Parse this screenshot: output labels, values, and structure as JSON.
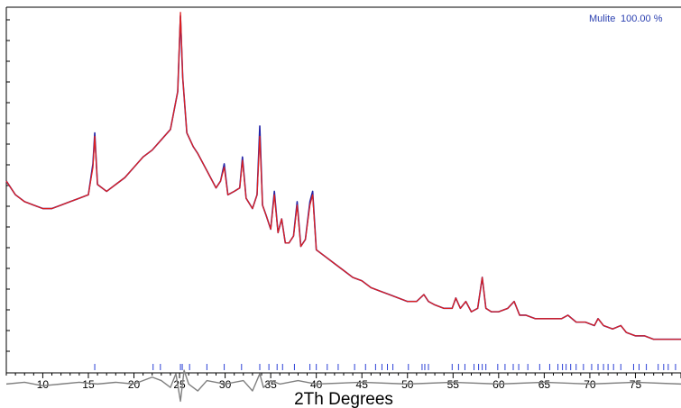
{
  "chart_data": {
    "type": "line",
    "title": "",
    "xlabel": "2Th Degrees",
    "ylabel": "",
    "xlim": [
      6,
      80
    ],
    "ylim": [
      0,
      100
    ],
    "grid": false,
    "legend_position": "top-right",
    "legend": {
      "phase": "Mulite",
      "percent": "100.00 %"
    },
    "x_ticks": [
      10,
      15,
      20,
      25,
      30,
      35,
      40,
      45,
      50,
      55,
      60,
      65,
      70,
      75
    ],
    "colors": {
      "observed": "#2424a8",
      "calculated": "#dd2020",
      "difference": "#808080",
      "reflections": "#2a3fd6",
      "legend": "#2a3fb0"
    },
    "series": [
      {
        "key": "observed",
        "x": [
          6,
          7,
          8,
          9,
          10,
          11,
          12,
          13,
          14,
          15,
          15.5,
          15.7,
          16,
          17,
          18,
          19,
          20,
          21,
          22,
          23,
          24,
          24.8,
          25.1,
          25.35,
          25.8,
          26.5,
          27,
          28,
          29,
          29.5,
          29.9,
          30.3,
          31,
          31.6,
          31.9,
          32.3,
          33,
          33.5,
          33.8,
          34.1,
          34.5,
          35,
          35.4,
          35.8,
          36.2,
          36.6,
          37,
          37.5,
          37.9,
          38.3,
          38.8,
          39.3,
          39.6,
          40,
          41,
          42,
          43,
          44,
          45,
          46,
          47,
          48,
          49,
          50,
          51,
          51.8,
          52.3,
          53,
          54,
          54.9,
          55.3,
          55.8,
          56.4,
          57,
          57.7,
          58.2,
          58.6,
          59.2,
          60,
          61,
          61.7,
          62.3,
          63,
          64,
          65,
          66,
          66.9,
          67.6,
          68.5,
          69.5,
          70.5,
          70.9,
          71.5,
          72.5,
          73.4,
          74,
          75,
          76,
          77,
          78,
          79,
          80
        ],
        "y": [
          50,
          46,
          44,
          43,
          42,
          42,
          43,
          44,
          45,
          46,
          55,
          64,
          49,
          47,
          49,
          51,
          54,
          57,
          59,
          62,
          65,
          76,
          98,
          80,
          64,
          60,
          58,
          53,
          48,
          50,
          55,
          46,
          47,
          48,
          57,
          45,
          42,
          46,
          66,
          43,
          40,
          36,
          47,
          35,
          39,
          32,
          32,
          34,
          44,
          31,
          33,
          44,
          47,
          30,
          28,
          26,
          24,
          22,
          21,
          19,
          18,
          17,
          16,
          15,
          15,
          17,
          15,
          14,
          13,
          13,
          16,
          13,
          15,
          12,
          13,
          22,
          13,
          12,
          12,
          13,
          15,
          11,
          11,
          10,
          10,
          10,
          10,
          11,
          9,
          9,
          8,
          10,
          8,
          7,
          8,
          6,
          5,
          5,
          4,
          4,
          4,
          4
        ]
      },
      {
        "key": "calculated",
        "x": [
          6,
          7,
          8,
          9,
          10,
          11,
          12,
          13,
          14,
          15,
          15.5,
          15.7,
          16,
          17,
          18,
          19,
          20,
          21,
          22,
          23,
          24,
          24.8,
          25.1,
          25.35,
          25.8,
          26.5,
          27,
          28,
          29,
          29.5,
          29.9,
          30.3,
          31,
          31.6,
          31.9,
          32.3,
          33,
          33.5,
          33.8,
          34.1,
          34.5,
          35,
          35.4,
          35.8,
          36.2,
          36.6,
          37,
          37.5,
          37.9,
          38.3,
          38.8,
          39.3,
          39.6,
          40,
          41,
          42,
          43,
          44,
          45,
          46,
          47,
          48,
          49,
          50,
          51,
          51.8,
          52.3,
          53,
          54,
          54.9,
          55.3,
          55.8,
          56.4,
          57,
          57.7,
          58.2,
          58.6,
          59.2,
          60,
          61,
          61.7,
          62.3,
          63,
          64,
          65,
          66,
          66.9,
          67.6,
          68.5,
          69.5,
          70.5,
          70.9,
          71.5,
          72.5,
          73.4,
          74,
          75,
          76,
          77,
          78,
          79,
          80
        ],
        "y": [
          50,
          46,
          44,
          43,
          42,
          42,
          43,
          44,
          45,
          46,
          54,
          63,
          49,
          47,
          49,
          51,
          54,
          57,
          59,
          62,
          65,
          76,
          99,
          80,
          64,
          60,
          58,
          53,
          48,
          50,
          54,
          46,
          47,
          48,
          56,
          45,
          42,
          46,
          63,
          43,
          40,
          36,
          46,
          35,
          39,
          32,
          32,
          34,
          43,
          31,
          33,
          43,
          46,
          30,
          28,
          26,
          24,
          22,
          21,
          19,
          18,
          17,
          16,
          15,
          15,
          17,
          15,
          14,
          13,
          13,
          16,
          13,
          15,
          12,
          13,
          22,
          13,
          12,
          12,
          13,
          15,
          11,
          11,
          10,
          10,
          10,
          10,
          11,
          9,
          9,
          8,
          10,
          8,
          7,
          8,
          6,
          5,
          5,
          4,
          4,
          4,
          4
        ]
      },
      {
        "key": "difference",
        "x": [
          6,
          8,
          10,
          12,
          14,
          16,
          18,
          20,
          22,
          23,
          24,
          24.6,
          25.1,
          25.5,
          26,
          27,
          28,
          30,
          32,
          33,
          33.8,
          34.2,
          35,
          36,
          38,
          40,
          45,
          50,
          55,
          60,
          65,
          70,
          75,
          80
        ],
        "y": [
          -9,
          -8.5,
          -9.5,
          -9,
          -8.5,
          -9,
          -8.5,
          -9,
          -7,
          -8,
          -10,
          -6,
          -14,
          -5,
          -9,
          -11,
          -8,
          -9,
          -8,
          -11,
          -6,
          -10,
          -8,
          -9,
          -8,
          -9,
          -8.5,
          -9,
          -8.5,
          -9,
          -8.5,
          -9,
          -8.5,
          -9
        ]
      }
    ],
    "reflections_2theta": [
      15.7,
      22.1,
      22.9,
      25.1,
      25.3,
      26.1,
      28.0,
      29.9,
      31.8,
      33.8,
      34.8,
      35.7,
      36.3,
      37.6,
      39.3,
      40.0,
      41.2,
      42.4,
      44.2,
      45.4,
      46.5,
      47.2,
      47.8,
      48.4,
      50.1,
      51.6,
      51.9,
      52.3,
      54.9,
      55.6,
      56.3,
      57.3,
      57.8,
      58.2,
      58.6,
      59.9,
      60.7,
      61.6,
      62.2,
      63.2,
      64.5,
      65.6,
      66.5,
      67.0,
      67.4,
      67.9,
      68.5,
      69.3,
      70.2,
      70.9,
      71.5,
      72.0,
      72.6,
      73.4,
      74.8,
      75.4,
      76.2,
      77.5,
      78.1,
      78.6,
      79.4
    ]
  }
}
